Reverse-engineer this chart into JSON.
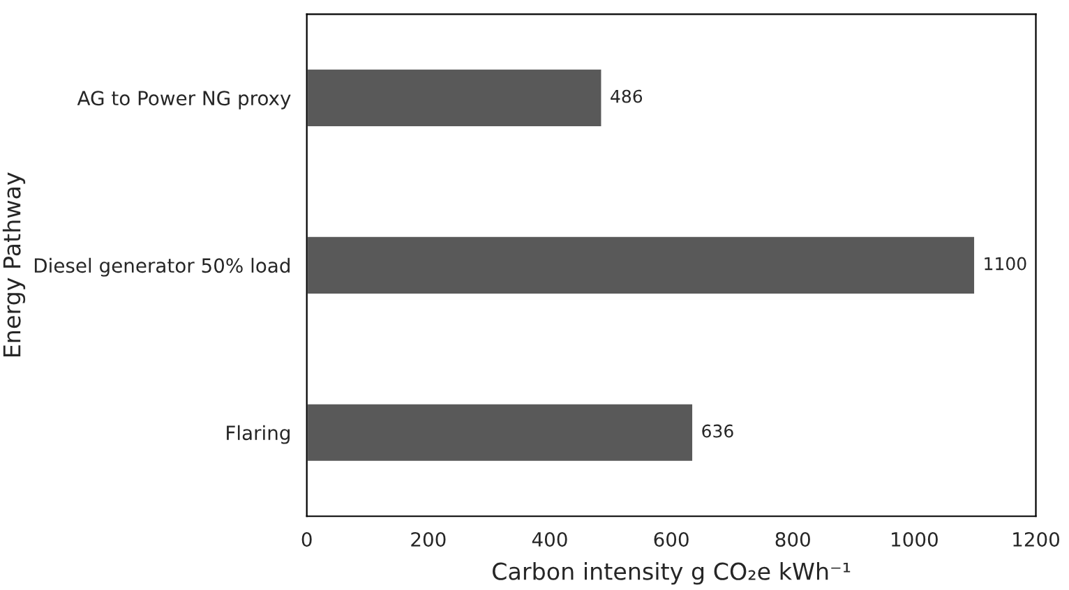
{
  "chart_data": {
    "type": "bar",
    "orientation": "horizontal",
    "xlabel": "Carbon intensity g CO₂e kWh⁻¹",
    "ylabel": "Energy Pathway",
    "categories": [
      "AG to Power NG proxy",
      "Diesel generator 50% load",
      "Flaring"
    ],
    "values": [
      486,
      1100,
      636
    ],
    "color": "#595959",
    "data_labels": true,
    "xlim": [
      0,
      1200
    ],
    "xticks": [
      0,
      200,
      400,
      600,
      800,
      1000,
      1200
    ],
    "grid": false
  }
}
